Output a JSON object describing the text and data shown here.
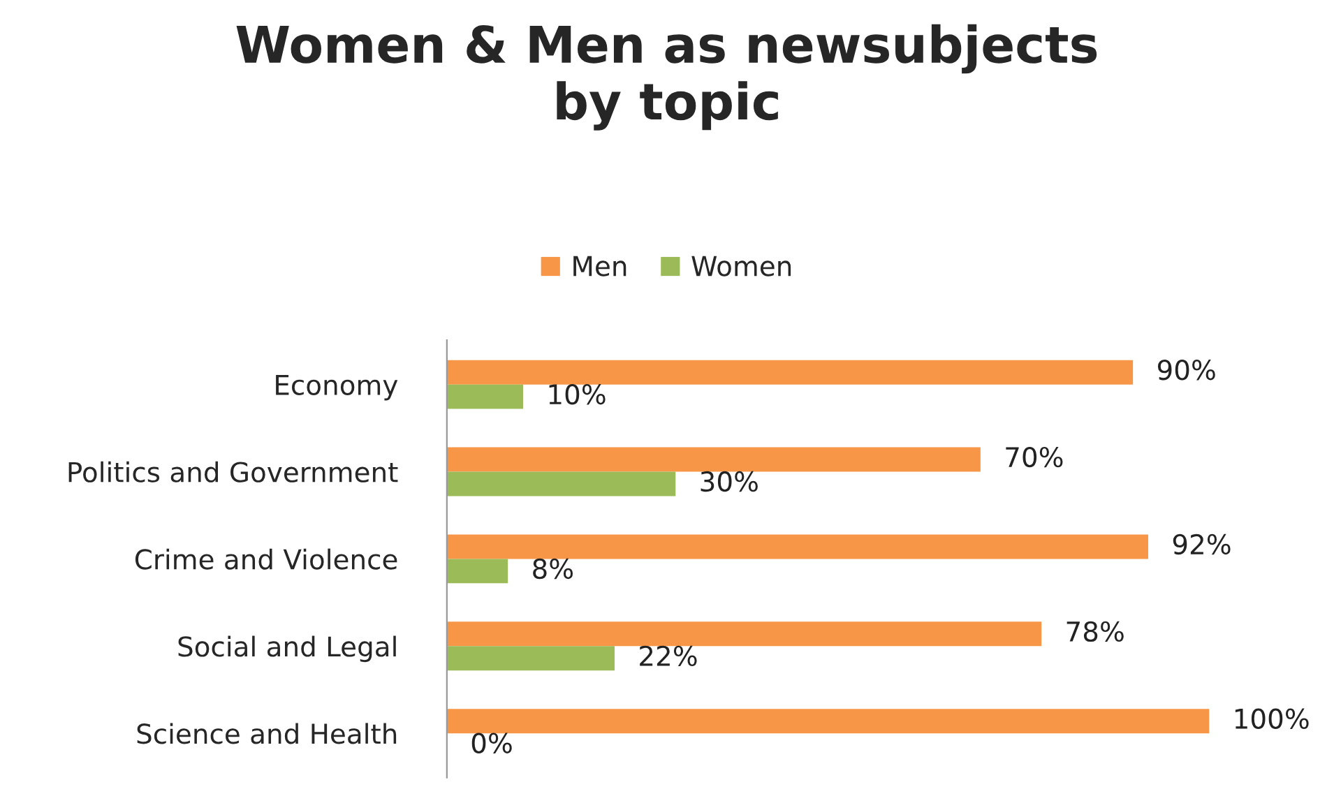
{
  "chart_data": {
    "type": "bar",
    "orientation": "horizontal",
    "title": "Women & Men as newsubjects\nby topic",
    "categories": [
      "Economy",
      "Politics and Government",
      "Crime and Violence",
      "Social and Legal",
      "Science and Health"
    ],
    "series": [
      {
        "name": "Men",
        "color": "#f79646",
        "values": [
          90,
          70,
          92,
          78,
          100
        ],
        "value_labels": [
          "90%",
          "70%",
          "92%",
          "78%",
          "100%"
        ]
      },
      {
        "name": "Women",
        "color": "#9bbb59",
        "values": [
          10,
          30,
          8,
          22,
          0
        ],
        "value_labels": [
          "10%",
          "30%",
          "8%",
          "22%",
          "0%"
        ]
      }
    ],
    "legend": "top",
    "grid": false
  }
}
